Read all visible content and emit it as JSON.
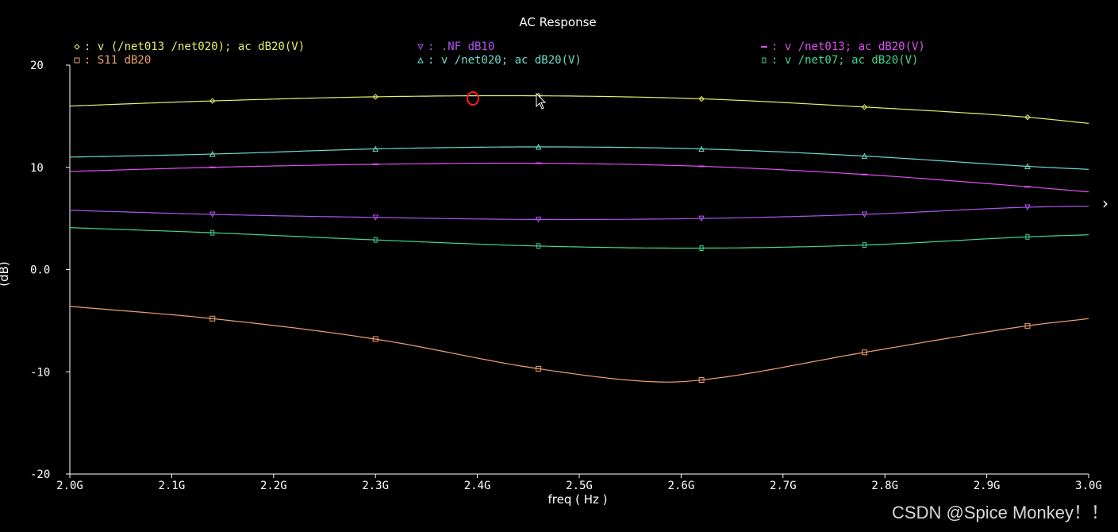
{
  "watermark": "CSDN @Spice Monkey！！",
  "icons": {
    "scroll": "chevron-right-icon",
    "cursor": "mouse-pointer-icon"
  },
  "chart_data": {
    "type": "line",
    "title": "AC Response",
    "xlabel": "freq ( Hz )",
    "ylabel": "(dB)",
    "xlim": [
      2.0,
      3.0
    ],
    "ylim": [
      -20,
      20
    ],
    "x_ticks": [
      {
        "value": 2.0,
        "label": "2.0G"
      },
      {
        "value": 2.1,
        "label": "2.1G"
      },
      {
        "value": 2.2,
        "label": "2.2G"
      },
      {
        "value": 2.3,
        "label": "2.3G"
      },
      {
        "value": 2.4,
        "label": "2.4G"
      },
      {
        "value": 2.5,
        "label": "2.5G"
      },
      {
        "value": 2.6,
        "label": "2.6G"
      },
      {
        "value": 2.7,
        "label": "2.7G"
      },
      {
        "value": 2.8,
        "label": "2.8G"
      },
      {
        "value": 2.9,
        "label": "2.9G"
      },
      {
        "value": 3.0,
        "label": "3.0G"
      }
    ],
    "y_ticks": [
      {
        "value": 20,
        "label": "20"
      },
      {
        "value": 10,
        "label": "10"
      },
      {
        "value": 0,
        "label": "0.0"
      },
      {
        "value": -10,
        "label": "-10"
      },
      {
        "value": -20,
        "label": "-20"
      }
    ],
    "legend_placement": "top",
    "grid": false,
    "series": [
      {
        "name": "v (/net013 /net020); ac dB20(V)",
        "marker": "diamond",
        "color": "#e6f06a",
        "x": [
          2.0,
          2.14,
          2.3,
          2.46,
          2.62,
          2.78,
          2.94,
          3.0
        ],
        "y": [
          16.0,
          16.5,
          16.9,
          17.0,
          16.7,
          15.9,
          14.9,
          14.3
        ],
        "markers_at": [
          2.14,
          2.3,
          2.46,
          2.62,
          2.78,
          2.94
        ]
      },
      {
        "name": "S11 dB20",
        "marker": "square",
        "color": "#f0a070",
        "x": [
          2.0,
          2.14,
          2.3,
          2.46,
          2.58,
          2.62,
          2.78,
          2.94,
          3.0
        ],
        "y": [
          -3.6,
          -4.8,
          -6.8,
          -9.7,
          -11.0,
          -10.8,
          -8.1,
          -5.5,
          -4.8
        ],
        "markers_at": [
          2.14,
          2.3,
          2.46,
          2.62,
          2.78,
          2.94
        ]
      },
      {
        "name": ".NF dB10",
        "marker": "triangle-down",
        "color": "#b056f0",
        "x": [
          2.0,
          2.14,
          2.3,
          2.46,
          2.62,
          2.78,
          2.94,
          3.0
        ],
        "y": [
          5.8,
          5.4,
          5.1,
          4.9,
          5.0,
          5.4,
          6.1,
          6.2
        ],
        "markers_at": [
          2.14,
          2.3,
          2.46,
          2.62,
          2.78,
          2.94
        ]
      },
      {
        "name": "v /net020; ac dB20(V)",
        "marker": "triangle-up",
        "color": "#6cdccc",
        "x": [
          2.0,
          2.14,
          2.3,
          2.46,
          2.62,
          2.78,
          2.94,
          3.0
        ],
        "y": [
          11.0,
          11.3,
          11.8,
          12.0,
          11.8,
          11.1,
          10.1,
          9.8
        ],
        "markers_at": [
          2.14,
          2.3,
          2.46,
          2.62,
          2.78,
          2.94
        ]
      },
      {
        "name": "v /net013; ac dB20(V)",
        "marker": "dash",
        "color": "#e050f0",
        "x": [
          2.0,
          2.14,
          2.3,
          2.46,
          2.62,
          2.78,
          2.94,
          3.0
        ],
        "y": [
          9.6,
          10.0,
          10.3,
          10.4,
          10.1,
          9.3,
          8.1,
          7.6
        ],
        "markers_at": [
          2.14,
          2.3,
          2.46,
          2.62,
          2.78,
          2.94
        ]
      },
      {
        "name": "v /net07; ac dB20(V)",
        "marker": "small-square",
        "color": "#40d890",
        "x": [
          2.0,
          2.14,
          2.3,
          2.46,
          2.62,
          2.78,
          2.94,
          3.0
        ],
        "y": [
          4.1,
          3.6,
          2.9,
          2.3,
          2.1,
          2.4,
          3.2,
          3.4
        ],
        "markers_at": [
          2.14,
          2.3,
          2.46,
          2.62,
          2.78,
          2.94
        ]
      }
    ]
  }
}
